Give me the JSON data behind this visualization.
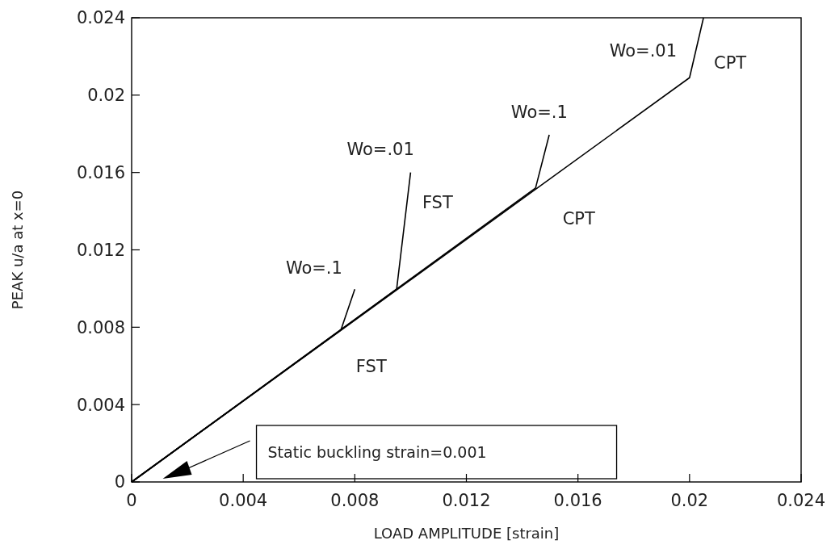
{
  "chart_data": {
    "type": "line",
    "xlabel": "LOAD AMPLITUDE [strain]",
    "ylabel": "PEAK u/a at x=0",
    "xlim": [
      0,
      0.024
    ],
    "ylim": [
      0,
      0.024
    ],
    "xticks": [
      0,
      0.004,
      0.008,
      0.012,
      0.016,
      0.02,
      0.024
    ],
    "yticks": [
      0,
      0.004,
      0.008,
      0.012,
      0.016,
      0.02,
      0.024
    ],
    "grid": false,
    "marker": "none",
    "line_style": "solid",
    "series": [
      {
        "color": "#000000",
        "x": [
          0,
          0.0075,
          0.008
        ],
        "values": [
          0,
          0.00785,
          0.00997
        ]
      },
      {
        "color": "#000000",
        "x": [
          0,
          0.0095,
          0.01
        ],
        "values": [
          0,
          0.00997,
          0.016
        ]
      },
      {
        "color": "#000000",
        "x": [
          0,
          0.01448,
          0.01497
        ],
        "values": [
          0,
          0.0152,
          0.01795
        ]
      },
      {
        "color": "#000000",
        "x": [
          0,
          0.02,
          0.0205
        ],
        "values": [
          0,
          0.0209,
          0.024
        ]
      }
    ],
    "annotations": [
      "Wo=.1",
      "FST",
      "Wo=.01",
      "FST",
      "Wo=.1",
      "CPT",
      "Wo=.01",
      "CPT",
      "Static buckling strain=0.001"
    ]
  }
}
